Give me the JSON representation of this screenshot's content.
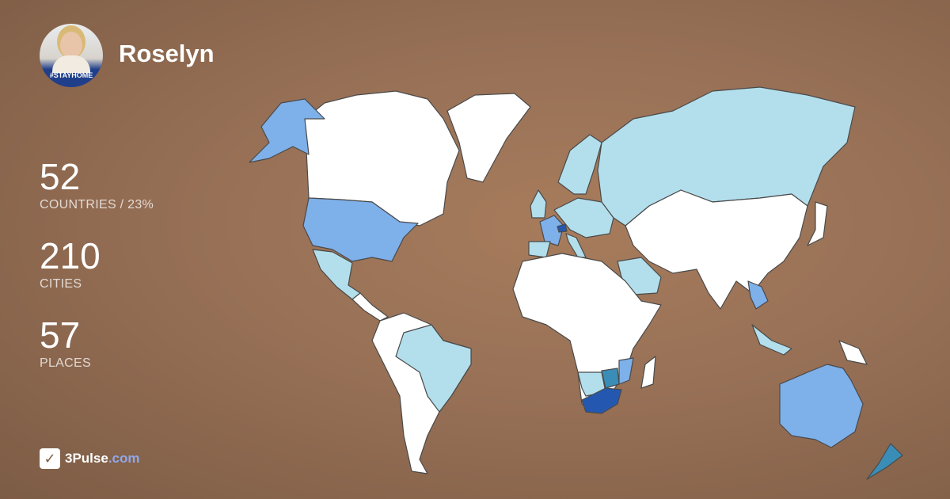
{
  "profile": {
    "name": "Roselyn",
    "avatar_caption": "#STAYHOME"
  },
  "stats": [
    {
      "value": "52",
      "label": "COUNTRIES / 23%"
    },
    {
      "value": "210",
      "label": "CITIES"
    },
    {
      "value": "57",
      "label": "PLACES"
    }
  ],
  "brand": {
    "name": "3Pulse",
    ".tld": ".com",
    "tld": ".com"
  },
  "colors": {
    "unvisited": "#ffffff",
    "visited_light": "#b3dfec",
    "visited_medium": "#7eb0ea",
    "visited_dark": "#2458b0",
    "visited_teal": "#3a8db6"
  }
}
